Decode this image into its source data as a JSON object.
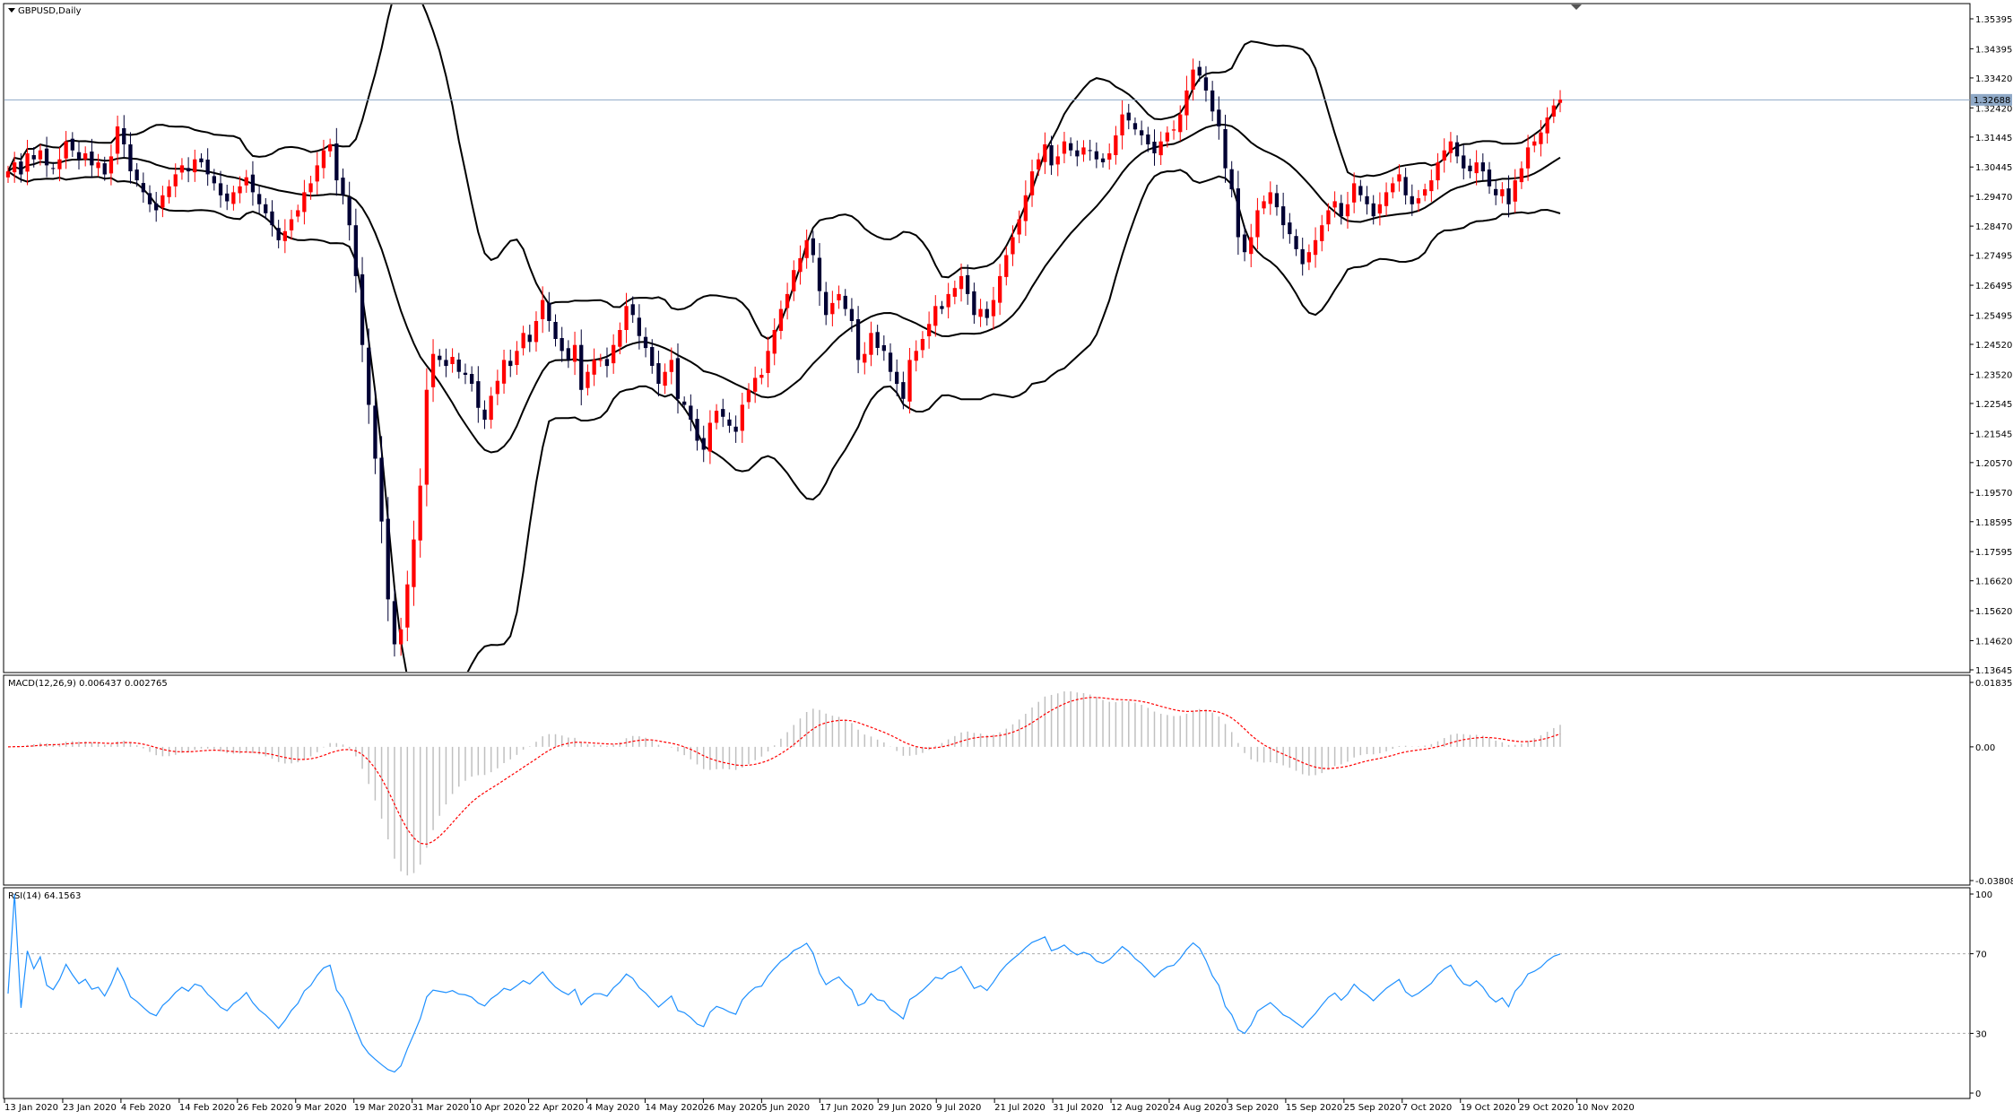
{
  "symbol": "GBPUSD,Daily",
  "current_price": "1.32688",
  "macd_label": "MACD(12,26,9) 0.006437 0.002765",
  "rsi_label": "RSI(14) 64.1563",
  "colors": {
    "up": "#ff0000",
    "down": "#000033",
    "band": "#000000",
    "signal": "#ff0000",
    "rsi": "#1e90ff",
    "price_line": "#8fa9c7"
  },
  "chart_data": [
    {
      "type": "candlestick",
      "title": "GBPUSD,Daily",
      "ylim": [
        1.13645,
        1.35395
      ],
      "y_ticks": [
        "1.35395",
        "1.34395",
        "1.33420",
        "1.32420",
        "1.31445",
        "1.30445",
        "1.29470",
        "1.28470",
        "1.27495",
        "1.26495",
        "1.25495",
        "1.24520",
        "1.23520",
        "1.22545",
        "1.21545",
        "1.20570",
        "1.19570",
        "1.18595",
        "1.17595",
        "1.16620",
        "1.15620",
        "1.14620",
        "1.13645"
      ],
      "x_ticks": [
        "13 Jan 2020",
        "23 Jan 2020",
        "4 Feb 2020",
        "14 Feb 2020",
        "26 Feb 2020",
        "9 Mar 2020",
        "19 Mar 2020",
        "31 Mar 2020",
        "10 Apr 2020",
        "22 Apr 2020",
        "4 May 2020",
        "14 May 2020",
        "26 May 2020",
        "5 Jun 2020",
        "17 Jun 2020",
        "29 Jun 2020",
        "9 Jul 2020",
        "21 Jul 2020",
        "31 Jul 2020",
        "12 Aug 2020",
        "24 Aug 2020",
        "3 Sep 2020",
        "15 Sep 2020",
        "25 Sep 2020",
        "7 Oct 2020",
        "19 Oct 2020",
        "29 Oct 2020",
        "10 Nov 2020"
      ],
      "closes": [
        1.303,
        1.306,
        1.302,
        1.309,
        1.307,
        1.31,
        1.305,
        1.304,
        1.307,
        1.313,
        1.31,
        1.307,
        1.309,
        1.305,
        1.306,
        1.302,
        1.308,
        1.318,
        1.312,
        1.303,
        1.3,
        1.296,
        1.292,
        1.29,
        1.295,
        1.298,
        1.302,
        1.305,
        1.303,
        1.307,
        1.306,
        1.302,
        1.299,
        1.295,
        1.293,
        1.296,
        1.298,
        1.301,
        1.296,
        1.292,
        1.289,
        1.285,
        1.28,
        1.283,
        1.287,
        1.29,
        1.296,
        1.299,
        1.305,
        1.31,
        1.312,
        1.3,
        1.295,
        1.285,
        1.268,
        1.245,
        1.225,
        1.207,
        1.186,
        1.16,
        1.145,
        1.15,
        1.165,
        1.18,
        1.198,
        1.23,
        1.242,
        1.24,
        1.238,
        1.241,
        1.236,
        1.235,
        1.232,
        1.224,
        1.22,
        1.228,
        1.233,
        1.24,
        1.238,
        1.243,
        1.249,
        1.246,
        1.253,
        1.26,
        1.253,
        1.247,
        1.243,
        1.24,
        1.245,
        1.23,
        1.236,
        1.24,
        1.24,
        1.238,
        1.245,
        1.25,
        1.258,
        1.255,
        1.248,
        1.244,
        1.238,
        1.232,
        1.236,
        1.24,
        1.227,
        1.225,
        1.22,
        1.213,
        1.21,
        1.219,
        1.223,
        1.221,
        1.218,
        1.216,
        1.225,
        1.23,
        1.234,
        1.235,
        1.243,
        1.25,
        1.257,
        1.262,
        1.27,
        1.274,
        1.28,
        1.275,
        1.263,
        1.255,
        1.259,
        1.262,
        1.257,
        1.253,
        1.24,
        1.242,
        1.249,
        1.244,
        1.243,
        1.236,
        1.232,
        1.227,
        1.24,
        1.243,
        1.247,
        1.252,
        1.258,
        1.257,
        1.262,
        1.264,
        1.268,
        1.262,
        1.255,
        1.257,
        1.254,
        1.26,
        1.268,
        1.275,
        1.281,
        1.287,
        1.295,
        1.303,
        1.307,
        1.312,
        1.305,
        1.308,
        1.313,
        1.31,
        1.308,
        1.311,
        1.31,
        1.307,
        1.306,
        1.309,
        1.315,
        1.322,
        1.32,
        1.317,
        1.315,
        1.312,
        1.309,
        1.313,
        1.316,
        1.317,
        1.322,
        1.33,
        1.337,
        1.335,
        1.33,
        1.323,
        1.318,
        1.304,
        1.297,
        1.281,
        1.276,
        1.281,
        1.29,
        1.293,
        1.296,
        1.291,
        1.285,
        1.282,
        1.277,
        1.272,
        1.276,
        1.28,
        1.285,
        1.29,
        1.293,
        1.288,
        1.292,
        1.299,
        1.295,
        1.292,
        1.288,
        1.292,
        1.296,
        1.299,
        1.302,
        1.295,
        1.292,
        1.294,
        1.297,
        1.3,
        1.306,
        1.31,
        1.313,
        1.308,
        1.304,
        1.303,
        1.306,
        1.303,
        1.298,
        1.295,
        1.297,
        1.292,
        1.3,
        1.304,
        1.311,
        1.313,
        1.316,
        1.321,
        1.325,
        1.327
      ],
      "bollinger": {
        "period": 20,
        "deviations": 2
      }
    },
    {
      "type": "histogram",
      "title": "MACD(12,26,9) 0.006437 0.002765",
      "series": [
        {
          "name": "MACD",
          "values": [
            0.006437
          ]
        },
        {
          "name": "Signal",
          "values": [
            0.002765
          ]
        }
      ],
      "ylim": [
        -0.03808,
        0.018355
      ],
      "y_ticks": [
        "0.018355",
        "0.00",
        "-0.03808"
      ]
    },
    {
      "type": "line",
      "title": "RSI(14) 64.1563",
      "series": [
        {
          "name": "RSI(14)",
          "values": [
            64.1563
          ]
        }
      ],
      "ylim": [
        0,
        100
      ],
      "y_ticks": [
        "100",
        "70",
        "30",
        "0"
      ]
    }
  ]
}
